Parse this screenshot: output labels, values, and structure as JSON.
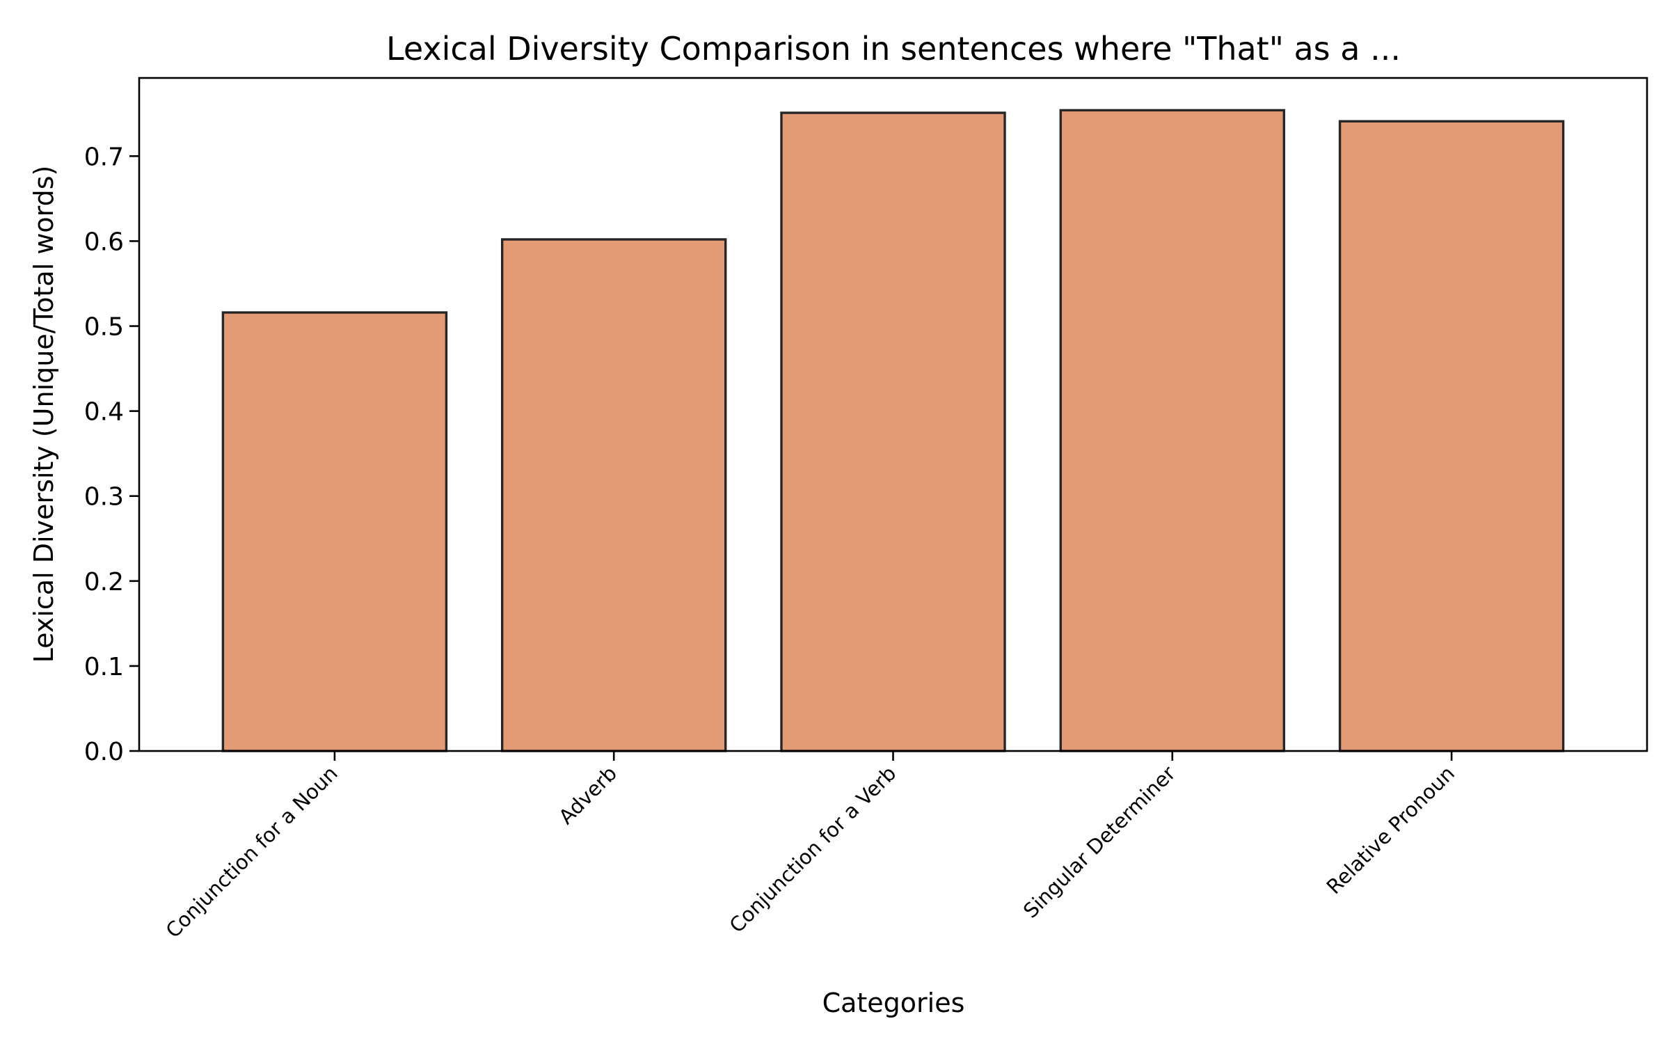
{
  "chart_data": {
    "type": "bar",
    "title": "Lexical Diversity Comparison in sentences where \"That\" as a ...",
    "xlabel": "Categories",
    "ylabel": "Lexical Diversity (Unique/Total words)",
    "categories": [
      "Conjunction for a Noun",
      "Adverb",
      "Conjunction for a Verb",
      "Singular Determiner",
      "Relative Pronoun"
    ],
    "values": [
      0.516,
      0.602,
      0.751,
      0.754,
      0.741
    ],
    "ylim": [
      0,
      0.792
    ],
    "yticks": [
      "0.0",
      "0.1",
      "0.2",
      "0.3",
      "0.4",
      "0.5",
      "0.6",
      "0.7"
    ],
    "bar_color": "#e39b76",
    "edge_color": "#262626",
    "grid": false,
    "legend": "none"
  }
}
